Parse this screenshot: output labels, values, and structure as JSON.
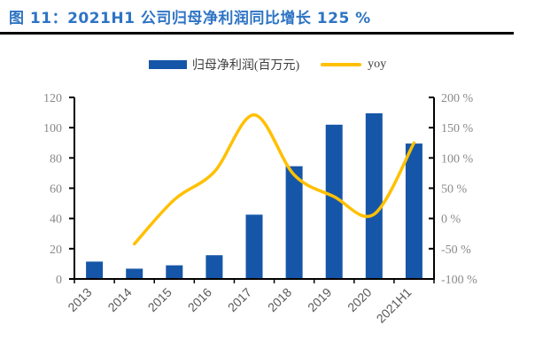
{
  "title": "图 11：2021H1 公司归母净利润同比增长 125 %",
  "legend": {
    "bar_label": "归母净利润(百万元)",
    "line_label": "yoy"
  },
  "colors": {
    "title": "#2E74C4",
    "rule": "#000000",
    "bar": "#1656A8",
    "line": "#FFC000",
    "axis": "#000000",
    "tick_label": "#8a8a8a",
    "category_label": "#595959",
    "legend_text": "#3d3d3d"
  },
  "chart_data": {
    "type": "bar",
    "subtype": "bar+line combo, dual axis",
    "title": "2021H1 公司归母净利润同比增长 125 %",
    "categories": [
      "2013",
      "2014",
      "2015",
      "2016",
      "2017",
      "2018",
      "2019",
      "2020",
      "2021H1"
    ],
    "series": [
      {
        "name": "归母净利润(百万元)",
        "kind": "bar",
        "axis": "left",
        "values": [
          11.5,
          6.8,
          9.0,
          15.7,
          42.5,
          74.5,
          102.0,
          109.5,
          89.5
        ]
      },
      {
        "name": "yoy",
        "kind": "line",
        "axis": "right",
        "values": [
          null,
          -42,
          31,
          77,
          171,
          72,
          36,
          7,
          125
        ]
      }
    ],
    "left_axis": {
      "min": 0,
      "max": 120,
      "step": 20,
      "tick_labels": [
        "0",
        "20",
        "40",
        "60",
        "80",
        "100",
        "120"
      ]
    },
    "right_axis": {
      "min": -100,
      "max": 200,
      "step": 50,
      "tick_labels": [
        "-100 %",
        "-50 %",
        "0 %",
        "50 %",
        "100 %",
        "150 %",
        "200 %"
      ]
    },
    "grid": false,
    "legend_position": "top"
  }
}
